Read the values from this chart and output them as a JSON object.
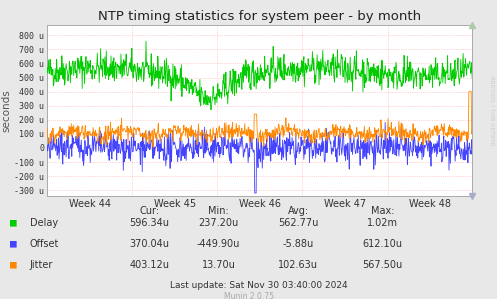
{
  "title": "NTP timing statistics for system peer - by month",
  "ylabel": "seconds",
  "background_color": "#e8e8e8",
  "plot_bg_color": "#ffffff",
  "grid_color": "#ffaaaa",
  "yticks": [
    -300,
    -200,
    -100,
    0,
    100,
    200,
    300,
    400,
    500,
    600,
    700,
    800
  ],
  "ytick_labels": [
    "-300 u",
    "-200 u",
    "-100 u",
    "0",
    "100 u",
    "200 u",
    "300 u",
    "400 u",
    "500 u",
    "600 u",
    "700 u",
    "800 u"
  ],
  "ylim": [
    -340,
    870
  ],
  "delay_color": "#00cc00",
  "offset_color": "#4444ff",
  "jitter_color": "#ff8800",
  "legend_items": [
    "Delay",
    "Offset",
    "Jitter"
  ],
  "legend_colors": [
    "#00cc00",
    "#4444ff",
    "#ff8800"
  ],
  "stats": {
    "headers": [
      "Cur:",
      "Min:",
      "Avg:",
      "Max:"
    ],
    "delay": [
      "596.34u",
      "237.20u",
      "562.77u",
      "1.02m"
    ],
    "offset": [
      "370.04u",
      "-449.90u",
      "-5.88u",
      "612.10u"
    ],
    "jitter": [
      "403.12u",
      "13.70u",
      "102.63u",
      "567.50u"
    ]
  },
  "last_update": "Last update: Sat Nov 30 03:40:00 2024",
  "munin_version": "Munin 2.0.75",
  "rrdtool_label": "RRDTOOL / TOBI OETIKER",
  "num_points": 900
}
